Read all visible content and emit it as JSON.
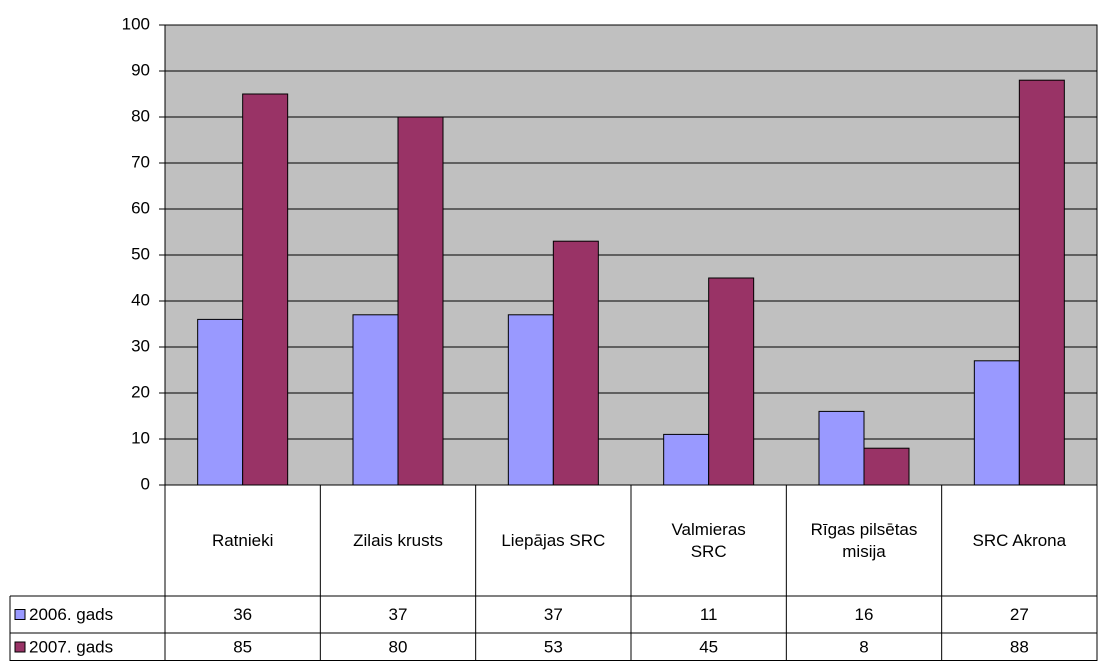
{
  "chart_data": {
    "type": "bar",
    "categories": [
      "Ratnieki",
      "Zilais krusts",
      "Liepājas SRC",
      "Valmieras SRC",
      "Rīgas pilsētas misija",
      "SRC Akrona"
    ],
    "series": [
      {
        "name": "2006. gads",
        "color": "#9999ff",
        "values": [
          36,
          37,
          37,
          11,
          16,
          27
        ]
      },
      {
        "name": "2007. gads",
        "color": "#993366",
        "values": [
          85,
          80,
          53,
          45,
          8,
          88
        ]
      }
    ],
    "ylim": [
      0,
      100
    ],
    "yticks": [
      0,
      10,
      20,
      30,
      40,
      50,
      60,
      70,
      80,
      90,
      100
    ],
    "grid": true,
    "plot_background": "#c0c0c0"
  }
}
